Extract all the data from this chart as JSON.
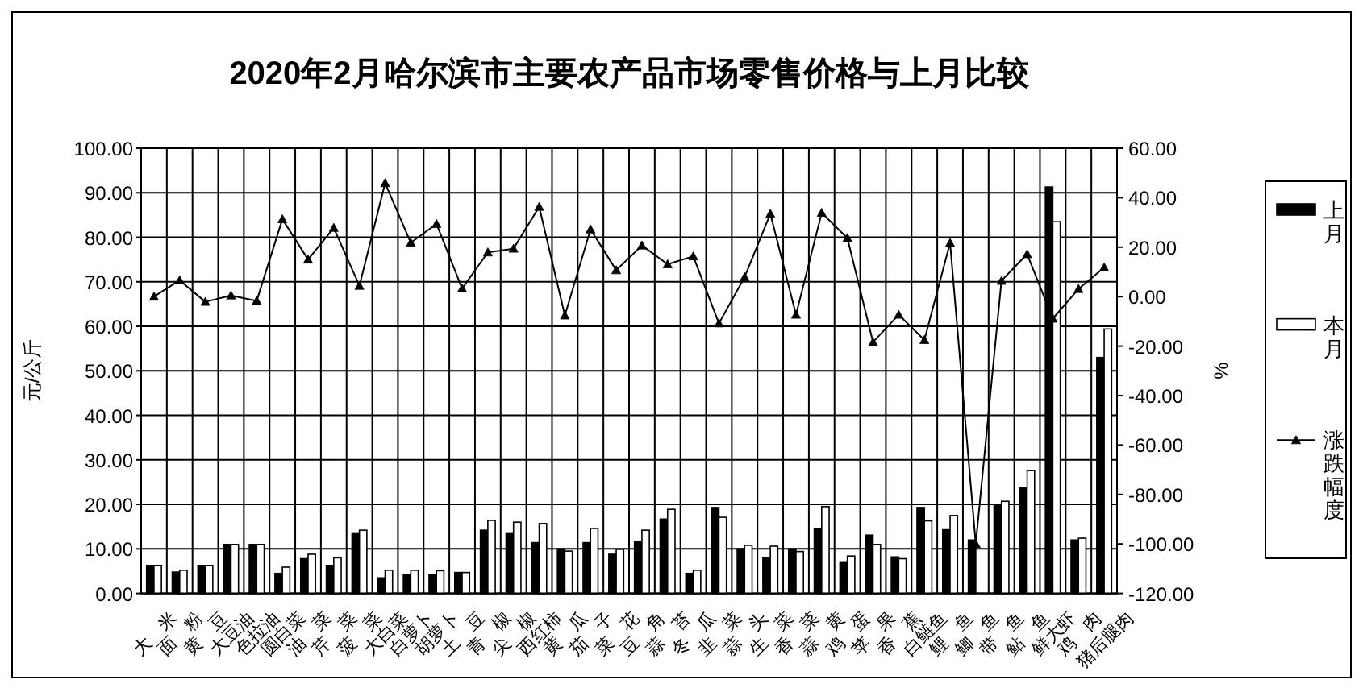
{
  "chart_data": {
    "type": "bar",
    "title": "2020年2月哈尔滨市主要农产品市场零售价格与上月比较",
    "ylabel": "元/公斤",
    "y2label": "%",
    "categories": [
      "大　米",
      "面　粉",
      "黄　豆",
      "大豆油",
      "色拉油",
      "圆白菜",
      "油　菜",
      "芹　菜",
      "菠　菜",
      "大白菜",
      "白萝卜",
      "胡萝卜",
      "土　豆",
      "青　椒",
      "尖　椒",
      "西红柿",
      "黄　瓜",
      "茄　子",
      "菜　花",
      "豆　角",
      "蒜　苔",
      "冬　瓜",
      "韭　菜",
      "蒜　头",
      "生　菜",
      "香　菜",
      "蒜　黄",
      "鸡　蛋",
      "苹　果",
      "香　蕉",
      "白鲢鱼",
      "鲤　鱼",
      "鲫　鱼",
      "带　鱼",
      "鲇　鱼",
      "鲜大虾",
      "鸡　肉",
      "猪后腿肉"
    ],
    "series": [
      {
        "name": "上月",
        "color": "#000000",
        "values": [
          6.3,
          4.8,
          6.3,
          11.0,
          11.0,
          4.5,
          7.8,
          6.3,
          13.6,
          3.5,
          4.2,
          4.2,
          4.7,
          14.2,
          13.6,
          11.4,
          10.0,
          11.4,
          8.8,
          11.7,
          16.7,
          4.5,
          19.3,
          10.0,
          8.1,
          10.0,
          14.6,
          7.1,
          13.1,
          8.2,
          19.3,
          14.3,
          12.0,
          19.8,
          23.7,
          91.3,
          12.0,
          53.0
        ]
      },
      {
        "name": "本月",
        "color": "#ffffff",
        "values": [
          6.3,
          5.2,
          6.3,
          11.0,
          11.0,
          5.9,
          8.8,
          8.0,
          14.2,
          5.2,
          5.2,
          5.1,
          4.7,
          16.4,
          16.0,
          15.7,
          9.5,
          14.6,
          9.9,
          14.2,
          18.9,
          5.2,
          17.1,
          10.8,
          10.6,
          9.4,
          19.5,
          8.4,
          11.0,
          7.8,
          16.3,
          17.5,
          null,
          20.7,
          27.6,
          83.5,
          12.4,
          59.4
        ]
      },
      {
        "name": "涨跌幅度",
        "type": "line",
        "axis": "y2",
        "color": "#000000",
        "values": [
          0.0,
          6.6,
          -2.1,
          0.5,
          -1.7,
          31.3,
          15.0,
          27.8,
          4.4,
          45.9,
          21.8,
          29.4,
          3.3,
          17.9,
          19.4,
          36.3,
          -7.6,
          27.2,
          10.7,
          20.7,
          13.1,
          16.3,
          -10.8,
          7.9,
          33.5,
          -7.3,
          33.9,
          23.7,
          -18.4,
          -7.3,
          -17.5,
          21.7,
          -100.0,
          6.4,
          17.2,
          -8.9,
          3.1,
          11.8
        ]
      }
    ],
    "ylim": [
      0,
      100
    ],
    "yticks": [
      {
        "value": 0,
        "label": "0.00"
      },
      {
        "value": 10,
        "label": "10.00"
      },
      {
        "value": 20,
        "label": "20.00"
      },
      {
        "value": 30,
        "label": "30.00"
      },
      {
        "value": 40,
        "label": "40.00"
      },
      {
        "value": 50,
        "label": "50.00"
      },
      {
        "value": 60,
        "label": "60.00"
      },
      {
        "value": 70,
        "label": "70.00"
      },
      {
        "value": 80,
        "label": "80.00"
      },
      {
        "value": 90,
        "label": "90.00"
      },
      {
        "value": 100,
        "label": "100.00"
      }
    ],
    "y2lim": [
      -120,
      60
    ],
    "y2ticks": [
      {
        "value": 60,
        "label": "60.00"
      },
      {
        "value": 40,
        "label": "40.00"
      },
      {
        "value": 20,
        "label": "20.00"
      },
      {
        "value": 0,
        "label": "0.00"
      },
      {
        "value": -20,
        "label": "-20.00"
      },
      {
        "value": -40,
        "label": "-40.00"
      },
      {
        "value": -60,
        "label": "-60.00"
      },
      {
        "value": -80,
        "label": "-80.00"
      },
      {
        "value": -100,
        "label": "-100.00"
      },
      {
        "value": -120,
        "label": "-120.00"
      }
    ],
    "grid": true,
    "legend": "right",
    "marker": "triangle",
    "line_style": "solid"
  }
}
